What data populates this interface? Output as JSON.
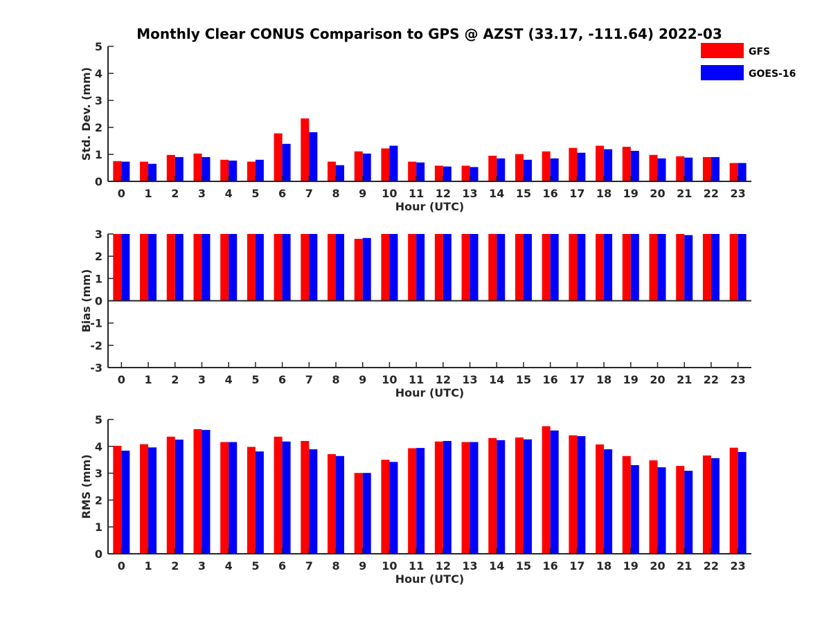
{
  "figure": {
    "title": "Monthly Clear CONUS Comparison to GPS @ AZST (33.17, -111.64) 2022-03"
  },
  "legend": {
    "placement": "top-right",
    "entries": [
      {
        "name": "GFS",
        "color": "#ff0000"
      },
      {
        "name": "GOES-16",
        "color": "#0000ff"
      }
    ]
  },
  "chart_data": [
    {
      "type": "bar",
      "xlabel": "Hour (UTC)",
      "ylabel": "Std. Dev. (mm)",
      "ylim": [
        0,
        5
      ],
      "yticks": [
        0,
        1,
        2,
        3,
        4,
        5
      ],
      "categories": [
        "0",
        "1",
        "2",
        "3",
        "4",
        "5",
        "6",
        "7",
        "8",
        "9",
        "10",
        "11",
        "12",
        "13",
        "14",
        "15",
        "16",
        "17",
        "18",
        "19",
        "20",
        "21",
        "22",
        "23"
      ],
      "series": [
        {
          "name": "GFS",
          "color": "#ff0000",
          "values": [
            0.75,
            0.73,
            0.98,
            1.03,
            0.8,
            0.73,
            1.78,
            2.33,
            0.73,
            1.11,
            1.22,
            0.73,
            0.58,
            0.58,
            0.95,
            1.01,
            1.11,
            1.24,
            1.32,
            1.28,
            0.98,
            0.93,
            0.9,
            0.68
          ]
        },
        {
          "name": "GOES-16",
          "color": "#0000ff",
          "values": [
            0.73,
            0.65,
            0.9,
            0.9,
            0.77,
            0.8,
            1.39,
            1.82,
            0.6,
            1.03,
            1.32,
            0.7,
            0.55,
            0.53,
            0.85,
            0.8,
            0.85,
            1.06,
            1.19,
            1.13,
            0.85,
            0.88,
            0.9,
            0.68
          ]
        }
      ]
    },
    {
      "type": "bar",
      "xlabel": "Hour (UTC)",
      "ylabel": "Bias (mm)",
      "ylim": [
        -3,
        3
      ],
      "yticks": [
        -3,
        -2,
        -1,
        0,
        1,
        2,
        3
      ],
      "categories": [
        "0",
        "1",
        "2",
        "3",
        "4",
        "5",
        "6",
        "7",
        "8",
        "9",
        "10",
        "11",
        "12",
        "13",
        "14",
        "15",
        "16",
        "17",
        "18",
        "19",
        "20",
        "21",
        "22",
        "23"
      ],
      "series": [
        {
          "name": "GFS",
          "color": "#ff0000",
          "values": [
            3,
            3,
            3,
            3,
            3,
            3,
            3,
            3,
            3,
            2.78,
            3,
            3,
            3,
            3,
            3,
            3,
            3,
            3,
            3,
            3,
            3,
            3,
            3,
            3
          ]
        },
        {
          "name": "GOES-16",
          "color": "#0000ff",
          "values": [
            3,
            3,
            3,
            3,
            3,
            3,
            3,
            3,
            3,
            2.82,
            3,
            3,
            3,
            3,
            3,
            3,
            3,
            3,
            3,
            3,
            3,
            2.95,
            3,
            3
          ]
        }
      ]
    },
    {
      "type": "bar",
      "xlabel": "Hour (UTC)",
      "ylabel": "RMS (mm)",
      "ylim": [
        0,
        5
      ],
      "yticks": [
        0,
        1,
        2,
        3,
        4,
        5
      ],
      "categories": [
        "0",
        "1",
        "2",
        "3",
        "4",
        "5",
        "6",
        "7",
        "8",
        "9",
        "10",
        "11",
        "12",
        "13",
        "14",
        "15",
        "16",
        "17",
        "18",
        "19",
        "20",
        "21",
        "22",
        "23"
      ],
      "series": [
        {
          "name": "GFS",
          "color": "#ff0000",
          "values": [
            4.02,
            4.08,
            4.36,
            4.64,
            4.16,
            3.98,
            4.36,
            4.2,
            3.71,
            3.01,
            3.5,
            3.93,
            4.18,
            4.16,
            4.31,
            4.33,
            4.75,
            4.41,
            4.07,
            3.64,
            3.48,
            3.27,
            3.66,
            3.95
          ]
        },
        {
          "name": "GOES-16",
          "color": "#0000ff",
          "values": [
            3.84,
            3.96,
            4.25,
            4.61,
            4.16,
            3.81,
            4.18,
            3.89,
            3.64,
            3.01,
            3.42,
            3.94,
            4.2,
            4.16,
            4.23,
            4.26,
            4.59,
            4.38,
            3.89,
            3.3,
            3.22,
            3.09,
            3.56,
            3.79
          ]
        }
      ]
    }
  ]
}
